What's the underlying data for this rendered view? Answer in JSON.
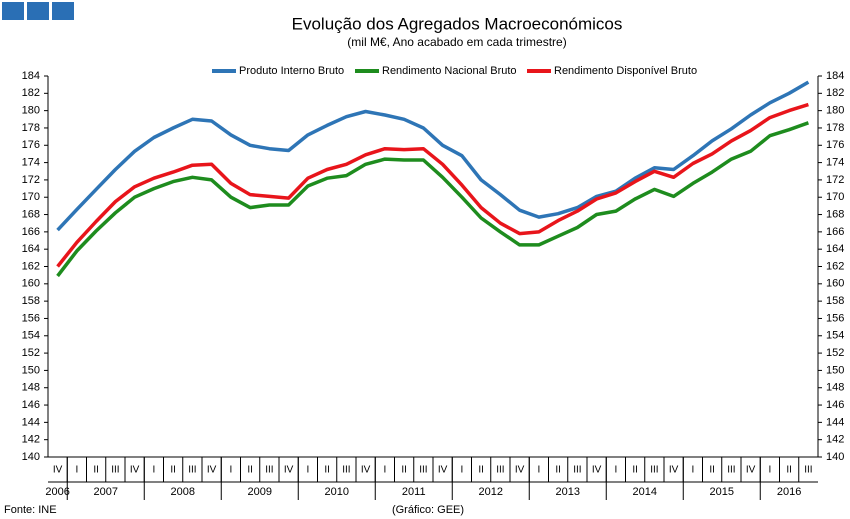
{
  "chart_data": {
    "type": "line",
    "title": "Evolução dos Agregados Macroeconómicos",
    "subtitle": "(mil M€, Ano acabado em cada trimestre)",
    "categories": [
      "IV",
      "I",
      "II",
      "III",
      "IV",
      "I",
      "II",
      "III",
      "IV",
      "I",
      "II",
      "III",
      "IV",
      "I",
      "II",
      "III",
      "IV",
      "I",
      "II",
      "III",
      "IV",
      "I",
      "II",
      "III",
      "IV",
      "I",
      "II",
      "III",
      "IV",
      "I",
      "II",
      "III",
      "IV",
      "I",
      "II",
      "III",
      "IV",
      "I",
      "II",
      "III"
    ],
    "years": [
      "2006",
      "2007",
      "2008",
      "2009",
      "2010",
      "2011",
      "2012",
      "2013",
      "2014",
      "2015",
      "2016"
    ],
    "series": [
      {
        "name": "Produto Interno Bruto",
        "color": "#2e75b6",
        "values": [
          166.2,
          168.6,
          170.9,
          173.2,
          175.3,
          176.9,
          178.0,
          179.0,
          178.8,
          177.2,
          176.0,
          175.6,
          175.4,
          177.2,
          178.3,
          179.3,
          179.9,
          179.5,
          179.0,
          178.0,
          176.0,
          174.8,
          172.0,
          170.3,
          168.5,
          167.7,
          168.1,
          168.8,
          170.1,
          170.7,
          172.2,
          173.4,
          173.2,
          174.8,
          176.5,
          177.9,
          179.5,
          180.9,
          182.0,
          183.3
        ]
      },
      {
        "name": "Rendimento Nacional Bruto",
        "color": "#1e8c1e",
        "values": [
          160.9,
          163.8,
          166.1,
          168.2,
          170.0,
          171.0,
          171.8,
          172.3,
          172.0,
          170.0,
          168.8,
          169.1,
          169.1,
          171.3,
          172.2,
          172.5,
          173.8,
          174.4,
          174.3,
          174.3,
          172.3,
          170.0,
          167.6,
          166.0,
          164.5,
          164.5,
          165.5,
          166.5,
          168.0,
          168.4,
          169.8,
          170.9,
          170.1,
          171.6,
          172.9,
          174.4,
          175.3,
          177.1,
          177.8,
          178.6
        ]
      },
      {
        "name": "Rendimento Disponível Bruto",
        "color": "#e8151b",
        "values": [
          162.0,
          164.8,
          167.2,
          169.5,
          171.2,
          172.2,
          172.9,
          173.7,
          173.8,
          171.6,
          170.3,
          170.1,
          169.9,
          172.2,
          173.2,
          173.8,
          174.9,
          175.6,
          175.5,
          175.6,
          173.8,
          171.4,
          168.8,
          167.0,
          165.8,
          166.0,
          167.3,
          168.4,
          169.8,
          170.5,
          171.8,
          173.0,
          172.3,
          173.9,
          175.0,
          176.5,
          177.7,
          179.2,
          180.0,
          180.7
        ]
      }
    ],
    "ylim": [
      140,
      184
    ],
    "yticks": [
      140,
      142,
      144,
      146,
      148,
      150,
      152,
      154,
      156,
      158,
      160,
      162,
      164,
      166,
      168,
      170,
      172,
      174,
      176,
      178,
      180,
      182,
      184
    ],
    "y2lim": [
      140,
      184
    ],
    "y2ticks": [
      140,
      142,
      144,
      146,
      148,
      150,
      152,
      154,
      156,
      158,
      160,
      162,
      164,
      166,
      168,
      170,
      172,
      174,
      176,
      178,
      180,
      182,
      184
    ],
    "source": "Fonte: INE",
    "credit": "(Gráfico: GEE)"
  }
}
